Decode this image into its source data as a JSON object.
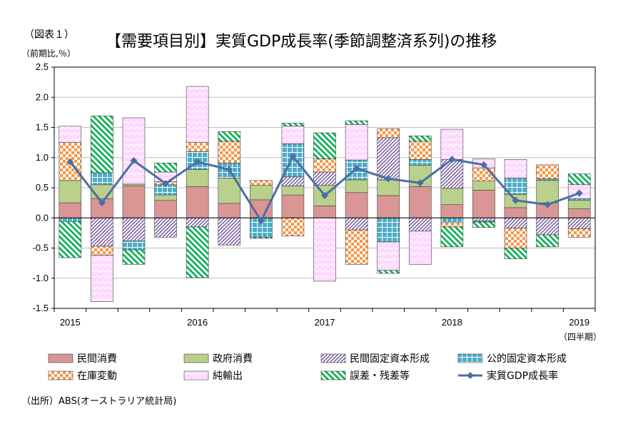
{
  "figure_label": "（図表１）",
  "title": "【需要項目別】実質GDP成長率(季節調整済系列)の推移",
  "unit_label": "（前期比,％）",
  "quarter_note": "（四半期）",
  "source": "（出所）ABS(オーストラリア統計局)",
  "colors": {
    "private_consumption": "#d99694",
    "government_consumption": "#9bbb59",
    "private_investment": "#8064a2",
    "public_investment": "#4bacc6",
    "inventory": "#f79646",
    "net_exports": "#ff99ff",
    "discrepancy": "#00b050",
    "gdp_line": "#4a6fa5"
  },
  "chart_data": {
    "type": "bar",
    "stacked": true,
    "title": "【需要項目別】実質GDP成長率(季節調整済系列)の推移",
    "ylabel": "（前期比,％）",
    "xlabel": "（四半期）",
    "ylim": [
      -1.5,
      2.5
    ],
    "yticks": [
      "2.5",
      "2.0",
      "1.5",
      "1.0",
      "0.5",
      "0.0",
      "-0.5",
      "-1.0",
      "-1.5"
    ],
    "year_labels": [
      "2015",
      "2016",
      "2017",
      "2018",
      "2019"
    ],
    "categories": [
      "2015Q1",
      "2015Q2",
      "2015Q3",
      "2015Q4",
      "2016Q1",
      "2016Q2",
      "2016Q3",
      "2016Q4",
      "2017Q1",
      "2017Q2",
      "2017Q3",
      "2017Q4",
      "2018Q1",
      "2018Q2",
      "2018Q3",
      "2018Q4",
      "2019Q1"
    ],
    "legend_position": "bottom",
    "grid": true,
    "series": [
      {
        "name": "民間消費",
        "key": "private_consumption",
        "pattern": "solid",
        "values": [
          0.25,
          0.32,
          0.53,
          0.29,
          0.52,
          0.24,
          0.3,
          0.38,
          0.2,
          0.42,
          0.37,
          0.52,
          0.22,
          0.46,
          0.17,
          0.25,
          0.15
        ]
      },
      {
        "name": "政府消費",
        "key": "government_consumption",
        "pattern": "dots",
        "values": [
          0.37,
          0.23,
          0.03,
          0.09,
          0.28,
          0.42,
          0.24,
          0.15,
          0.34,
          0.21,
          0.26,
          0.35,
          0.27,
          0.15,
          0.22,
          0.37,
          0.14
        ]
      },
      {
        "name": "民間固定資本形成",
        "key": "private_investment",
        "pattern": "diag",
        "values": [
          0.0,
          -0.47,
          -0.38,
          -0.32,
          -0.15,
          -0.45,
          0.0,
          0.15,
          0.22,
          -0.2,
          0.7,
          -0.22,
          0.48,
          -0.05,
          -0.17,
          -0.28,
          -0.18
        ]
      },
      {
        "name": "公的固定資本形成",
        "key": "public_investment",
        "pattern": "grid",
        "values": [
          -0.06,
          0.2,
          -0.15,
          0.17,
          0.3,
          0.25,
          -0.32,
          0.55,
          0.0,
          0.33,
          -0.4,
          0.1,
          -0.08,
          -0.02,
          0.27,
          0.03,
          0.03
        ]
      },
      {
        "name": "在庫変動",
        "key": "inventory",
        "pattern": "checker",
        "values": [
          0.63,
          -0.15,
          0.0,
          0.05,
          0.15,
          0.36,
          0.08,
          -0.3,
          0.22,
          -0.57,
          0.15,
          0.3,
          -0.07,
          0.22,
          -0.33,
          0.23,
          -0.14
        ]
      },
      {
        "name": "純輸出",
        "key": "net_exports",
        "pattern": "zigzag",
        "values": [
          0.27,
          -0.77,
          1.1,
          0.16,
          0.93,
          0.0,
          0.0,
          0.29,
          -1.05,
          0.59,
          -0.47,
          -0.55,
          0.5,
          0.15,
          0.31,
          0.0,
          0.23
        ]
      },
      {
        "name": "誤差・残差等",
        "key": "discrepancy",
        "pattern": "stripes",
        "values": [
          -0.6,
          0.94,
          -0.24,
          0.15,
          -0.84,
          0.16,
          -0.02,
          0.05,
          0.43,
          0.06,
          -0.05,
          0.09,
          -0.33,
          -0.09,
          -0.18,
          -0.2,
          0.18
        ]
      }
    ],
    "line": {
      "name": "実質GDP成長率",
      "key": "gdp_line",
      "values": [
        0.93,
        0.25,
        0.95,
        0.57,
        0.93,
        0.8,
        -0.05,
        1.02,
        0.37,
        0.82,
        0.65,
        0.58,
        0.97,
        0.88,
        0.29,
        0.22,
        0.41
      ]
    }
  }
}
